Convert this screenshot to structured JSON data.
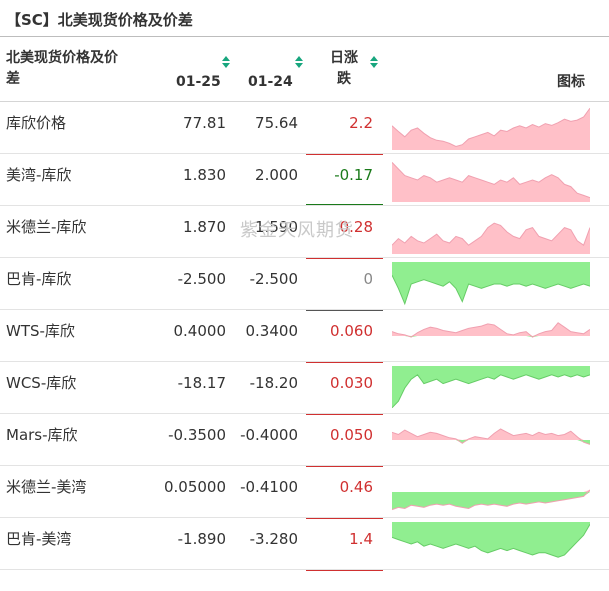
{
  "title": "【SC】北美现货价格及价差",
  "watermark": "紫金天风期货",
  "header": {
    "name_label_line1": "北美现货价格及价",
    "name_label_line2": "差",
    "col1": "01-25",
    "col2": "01-24",
    "change_line1": "日涨",
    "change_line2": "跌",
    "chart": "图标"
  },
  "colors": {
    "up": "#d03030",
    "down": "#1a7a1a",
    "flat": "#888888",
    "area_up": "#ffc0c8",
    "area_down": "#90ee90",
    "sort_icon": "#18a67e"
  },
  "rows": [
    {
      "name": "库欣价格",
      "v1": "77.81",
      "v2": "75.64",
      "change": "2.2",
      "dir": "up",
      "spark": [
        0.55,
        0.42,
        0.3,
        0.45,
        0.5,
        0.38,
        0.28,
        0.22,
        0.2,
        0.15,
        0.08,
        0.12,
        0.25,
        0.3,
        0.35,
        0.4,
        0.32,
        0.45,
        0.42,
        0.5,
        0.55,
        0.5,
        0.58,
        0.52,
        0.6,
        0.56,
        0.62,
        0.7,
        0.65,
        0.68,
        0.75,
        0.95
      ]
    },
    {
      "name": "美湾-库欣",
      "v1": "1.830",
      "v2": "2.000",
      "change": "-0.17",
      "dir": "down",
      "spark": [
        0.9,
        0.75,
        0.6,
        0.55,
        0.5,
        0.6,
        0.55,
        0.45,
        0.5,
        0.55,
        0.5,
        0.45,
        0.6,
        0.55,
        0.5,
        0.45,
        0.4,
        0.5,
        0.45,
        0.55,
        0.4,
        0.45,
        0.5,
        0.45,
        0.55,
        0.62,
        0.55,
        0.4,
        0.35,
        0.2,
        0.15,
        0.1
      ]
    },
    {
      "name": "米德兰-库欣",
      "v1": "1.870",
      "v2": "1.590",
      "change": "0.28",
      "dir": "up",
      "spark": [
        0.2,
        0.35,
        0.25,
        0.4,
        0.3,
        0.25,
        0.35,
        0.45,
        0.3,
        0.25,
        0.4,
        0.35,
        0.2,
        0.3,
        0.4,
        0.6,
        0.7,
        0.65,
        0.5,
        0.4,
        0.35,
        0.55,
        0.6,
        0.4,
        0.35,
        0.3,
        0.45,
        0.6,
        0.55,
        0.3,
        0.2,
        0.6
      ]
    },
    {
      "name": "巴肯-库欣",
      "v1": "-2.500",
      "v2": "-2.500",
      "change": "0",
      "dir": "flat",
      "spark": [
        -0.3,
        -0.6,
        -0.95,
        -0.5,
        -0.45,
        -0.4,
        -0.45,
        -0.5,
        -0.55,
        -0.45,
        -0.6,
        -0.9,
        -0.5,
        -0.55,
        -0.6,
        -0.55,
        -0.5,
        -0.5,
        -0.55,
        -0.5,
        -0.5,
        -0.55,
        -0.5,
        -0.55,
        -0.6,
        -0.55,
        -0.5,
        -0.55,
        -0.6,
        -0.55,
        -0.5,
        -0.55
      ]
    },
    {
      "name": "WTS-库欣",
      "v1": "0.4000",
      "v2": "0.3400",
      "change": "0.060",
      "dir": "up",
      "spark": [
        0.2,
        0.1,
        0.05,
        -0.05,
        0.15,
        0.3,
        0.4,
        0.35,
        0.25,
        0.2,
        0.15,
        0.25,
        0.35,
        0.4,
        0.45,
        0.55,
        0.5,
        0.3,
        0.1,
        0.05,
        0.15,
        0.2,
        -0.05,
        0.1,
        0.2,
        0.25,
        0.6,
        0.4,
        0.2,
        0.15,
        0.1,
        0.3
      ]
    },
    {
      "name": "WCS-库欣",
      "v1": "-18.17",
      "v2": "-18.20",
      "change": "0.030",
      "dir": "up",
      "spark": [
        -0.95,
        -0.8,
        -0.5,
        -0.3,
        -0.2,
        -0.4,
        -0.35,
        -0.3,
        -0.4,
        -0.35,
        -0.3,
        -0.35,
        -0.4,
        -0.35,
        -0.3,
        -0.25,
        -0.3,
        -0.2,
        -0.25,
        -0.3,
        -0.25,
        -0.2,
        -0.25,
        -0.3,
        -0.25,
        -0.2,
        -0.25,
        -0.2,
        -0.25,
        -0.2,
        -0.25,
        -0.2
      ]
    },
    {
      "name": "Mars-库欣",
      "v1": "-0.3500",
      "v2": "-0.4000",
      "change": "0.050",
      "dir": "up",
      "spark": [
        0.35,
        0.25,
        0.45,
        0.3,
        0.15,
        0.25,
        0.35,
        0.3,
        0.2,
        0.1,
        0.05,
        -0.15,
        0.05,
        0.15,
        0.1,
        0.05,
        0.3,
        0.5,
        0.35,
        0.2,
        0.25,
        0.3,
        0.2,
        0.35,
        0.25,
        0.3,
        0.2,
        0.25,
        0.4,
        0.15,
        -0.1,
        -0.2
      ]
    },
    {
      "name": "米德兰-美湾",
      "v1": "0.05000",
      "v2": "-0.4100",
      "change": "0.46",
      "dir": "up",
      "spark": [
        -0.8,
        -0.7,
        -0.75,
        -0.6,
        -0.65,
        -0.7,
        -0.6,
        -0.55,
        -0.6,
        -0.55,
        -0.65,
        -0.7,
        -0.75,
        -0.6,
        -0.55,
        -0.6,
        -0.55,
        -0.6,
        -0.65,
        -0.55,
        -0.5,
        -0.55,
        -0.5,
        -0.45,
        -0.5,
        -0.45,
        -0.4,
        -0.35,
        -0.3,
        -0.25,
        -0.2,
        0.1
      ]
    },
    {
      "name": "巴肯-美湾",
      "v1": "-1.890",
      "v2": "-3.280",
      "change": "1.4",
      "dir": "up",
      "spark": [
        -0.35,
        -0.4,
        -0.45,
        -0.5,
        -0.45,
        -0.55,
        -0.5,
        -0.55,
        -0.6,
        -0.55,
        -0.5,
        -0.55,
        -0.6,
        -0.55,
        -0.65,
        -0.7,
        -0.65,
        -0.6,
        -0.65,
        -0.6,
        -0.65,
        -0.7,
        -0.75,
        -0.7,
        -0.7,
        -0.75,
        -0.8,
        -0.75,
        -0.6,
        -0.45,
        -0.3,
        -0.05
      ]
    }
  ]
}
